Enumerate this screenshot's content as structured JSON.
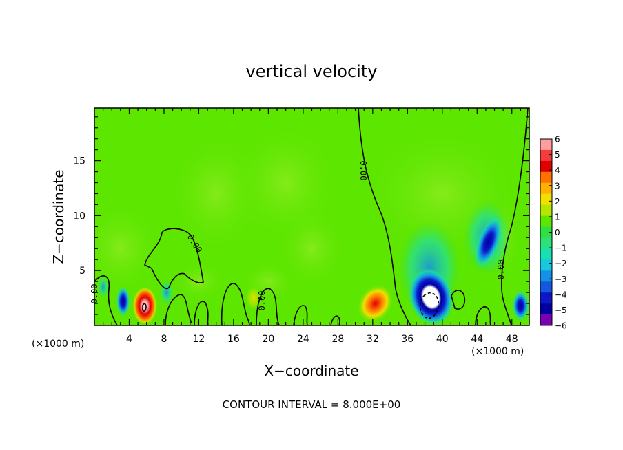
{
  "chart_data": {
    "type": "heatmap",
    "title": "vertical velocity",
    "xlabel": "X−coordinate",
    "ylabel": "Z−coordinate",
    "x_unit_left": "(×1000 m)",
    "x_unit_right": "(×1000 m)",
    "xlim": [
      0,
      50
    ],
    "ylim": [
      0,
      19.8
    ],
    "x_ticks": [
      4,
      8,
      12,
      16,
      20,
      24,
      28,
      32,
      36,
      40,
      44,
      48
    ],
    "y_ticks": [
      5,
      10,
      15
    ],
    "colorbar": {
      "range": [
        -6,
        6
      ],
      "tick_labels": [
        "6",
        "5",
        "4",
        "3",
        "2",
        "1",
        "0",
        "−1",
        "−2",
        "−3",
        "−4",
        "−5",
        "−6"
      ],
      "colors": [
        "#ff9e9e",
        "#f53b3b",
        "#e00000",
        "#ff7200",
        "#ffb000",
        "#f0e000",
        "#b4e600",
        "#5de600",
        "#2ee040",
        "#2ee07a",
        "#18e0b0",
        "#16c8dc",
        "#1492e6",
        "#1458e0",
        "#0c18c8",
        "#0000a0",
        "#7a00b4"
      ]
    },
    "contour_labels": [
      "0.00",
      "0.00",
      "0.00",
      "0.00",
      "0.00"
    ],
    "annotation": "CONTOUR INTERVAL = 8.000E+00",
    "features": [
      {
        "kind": "updraft",
        "x": 5.8,
        "z": 1.8,
        "value": 5.5
      },
      {
        "kind": "updraft",
        "x": 32.3,
        "z": 2.0,
        "value": 4.5
      },
      {
        "kind": "updraft",
        "x": 18.3,
        "z": 2.5,
        "value": 2.5
      },
      {
        "kind": "downdraft",
        "x": 38.7,
        "z": 2.6,
        "value": -6.5
      },
      {
        "kind": "downdraft",
        "x": 45.3,
        "z": 7.6,
        "value": -4.5
      },
      {
        "kind": "downdraft",
        "x": 3.3,
        "z": 2.2,
        "value": -4.0
      },
      {
        "kind": "downdraft",
        "x": 49.0,
        "z": 1.8,
        "value": -4.0
      },
      {
        "kind": "downdraft",
        "x": 1.0,
        "z": 3.5,
        "value": -3.5
      },
      {
        "kind": "downdraft",
        "x": 8.3,
        "z": 3.0,
        "value": -3.5
      }
    ]
  }
}
